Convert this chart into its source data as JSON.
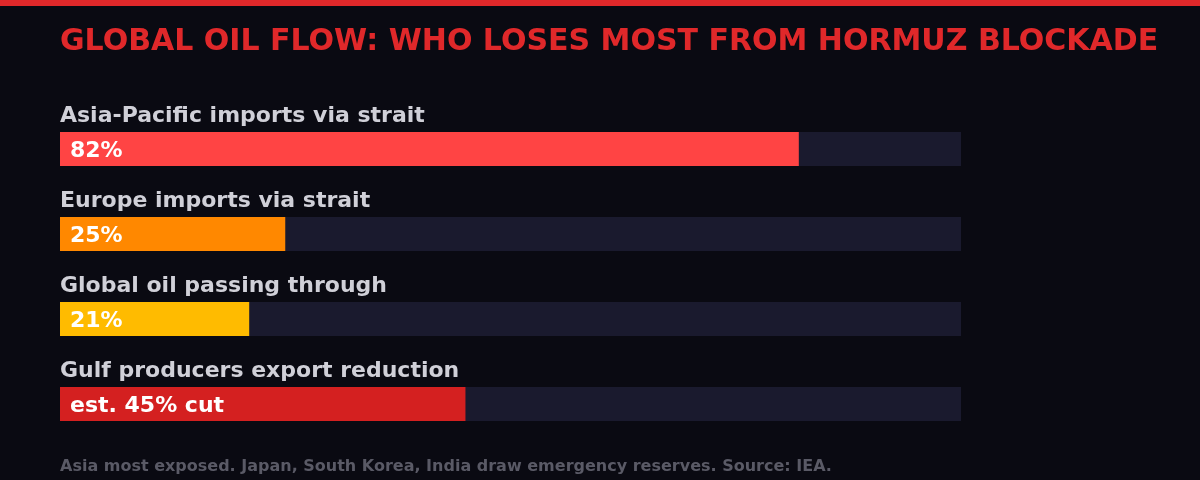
{
  "chart_data": {
    "type": "bar",
    "orientation": "horizontal",
    "title": "GLOBAL OIL FLOW: WHO LOSES MOST FROM HORMUZ BLOCKADE",
    "categories": [
      "Asia-Pacific imports via strait",
      "Europe imports via strait",
      "Global oil passing through",
      "Gulf producers export reduction"
    ],
    "values": [
      82,
      25,
      21,
      45
    ],
    "value_labels": [
      "82%",
      "25%",
      "21%",
      "est. 45% cut"
    ],
    "colors": [
      "#ff4444",
      "#ff8800",
      "#ffbb00",
      "#d42020"
    ],
    "xlim": [
      0,
      100
    ],
    "tick_labels": "y",
    "grid": false,
    "legend": false,
    "annotations": [
      "Asia most exposed. Japan, South Korea, India draw emergency reserves. Source: IEA."
    ]
  }
}
